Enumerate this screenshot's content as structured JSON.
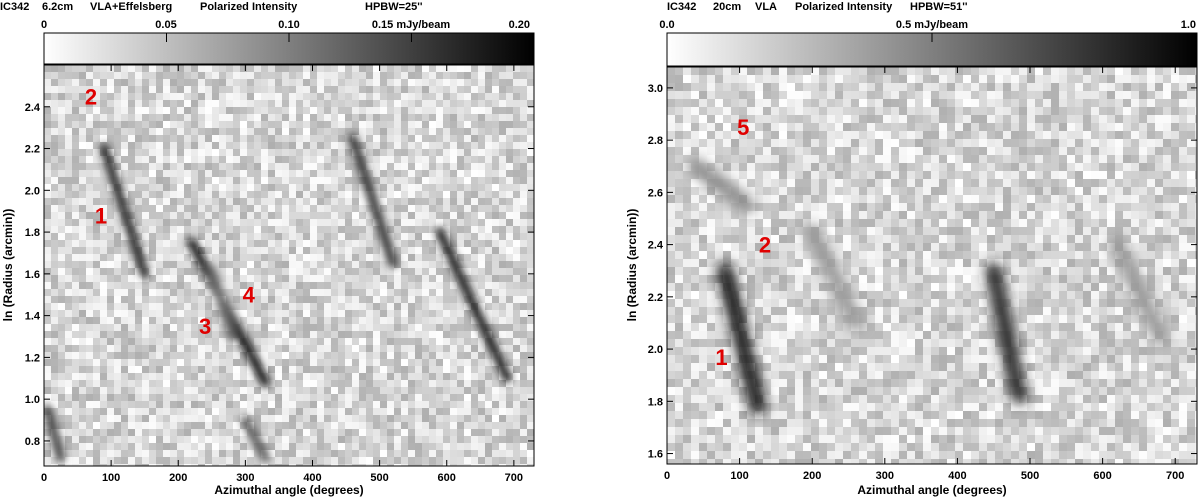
{
  "chart_data": [
    {
      "type": "heatmap",
      "header": {
        "object": "IC342",
        "wavelength": "6.2cm",
        "instrument": "VLA+Effelsberg",
        "quantity": "Polarized Intensity",
        "beam": "HPBW=25''"
      },
      "colorbar": {
        "min": 0,
        "max": 0.2,
        "ticks": [
          "0",
          "0.05",
          "0.10",
          "0.15 mJy/beam",
          "0.20"
        ],
        "tick_values": [
          0,
          0.05,
          0.1,
          0.15,
          0.2
        ],
        "colormap": "white-to-black"
      },
      "xlabel": "Azimuthal angle (degrees)",
      "ylabel": "ln (Radius (arcmin))",
      "xlim": [
        0,
        730
      ],
      "ylim": [
        0.68,
        2.6
      ],
      "xticks": [
        "0",
        "100",
        "200",
        "300",
        "400",
        "500",
        "600",
        "700"
      ],
      "xtick_values": [
        0,
        100,
        200,
        300,
        400,
        500,
        600,
        700
      ],
      "yticks": [
        "0.8",
        "1.0",
        "1.2",
        "1.4",
        "1.6",
        "1.8",
        "2.0",
        "2.2",
        "2.4"
      ],
      "ytick_values": [
        0.8,
        1.0,
        1.2,
        1.4,
        1.6,
        1.8,
        2.0,
        2.2,
        2.4
      ],
      "ridges": [
        {
          "points": [
            [
              90,
              2.2
            ],
            [
              150,
              1.6
            ]
          ],
          "value": 0.17
        },
        {
          "points": [
            [
              220,
              1.75
            ],
            [
              330,
              1.08
            ]
          ],
          "value": 0.19
        },
        {
          "points": [
            [
              460,
              2.25
            ],
            [
              520,
              1.65
            ]
          ],
          "value": 0.16
        },
        {
          "points": [
            [
              590,
              1.8
            ],
            [
              690,
              1.1
            ]
          ],
          "value": 0.18
        },
        {
          "points": [
            [
              250,
              1.62
            ],
            [
              280,
              1.3
            ]
          ],
          "value": 0.12
        },
        {
          "points": [
            [
              5,
              0.95
            ],
            [
              25,
              0.72
            ]
          ],
          "value": 0.15
        },
        {
          "points": [
            [
              300,
              0.9
            ],
            [
              330,
              0.72
            ]
          ],
          "value": 0.13
        }
      ],
      "annotations": [
        {
          "text": "2",
          "x": 70,
          "y": 2.45
        },
        {
          "text": "1",
          "x": 85,
          "y": 1.88
        },
        {
          "text": "3",
          "x": 240,
          "y": 1.35
        },
        {
          "text": "4",
          "x": 305,
          "y": 1.5
        }
      ],
      "annotation_color": "#e00000"
    },
    {
      "type": "heatmap",
      "header": {
        "object": "IC342",
        "wavelength": "20cm",
        "instrument": "VLA",
        "quantity": "Polarized Intensity",
        "beam": "HPBW=51''"
      },
      "colorbar": {
        "min": 0,
        "max": 1.0,
        "ticks": [
          "0.0",
          "0.5 mJy/beam",
          "1.0"
        ],
        "tick_values": [
          0,
          0.5,
          1.0
        ],
        "colormap": "white-to-black"
      },
      "xlabel": "Azimuthal angle (degrees)",
      "ylabel": "ln (Radius (arcmin))",
      "xlim": [
        0,
        730
      ],
      "ylim": [
        1.56,
        3.08
      ],
      "xticks": [
        "0",
        "100",
        "200",
        "300",
        "400",
        "500",
        "600",
        "700"
      ],
      "xtick_values": [
        0,
        100,
        200,
        300,
        400,
        500,
        600,
        700
      ],
      "yticks": [
        "1.6",
        "1.8",
        "2.0",
        "2.2",
        "2.4",
        "2.6",
        "2.8",
        "3.0"
      ],
      "ytick_values": [
        1.6,
        1.8,
        2.0,
        2.2,
        2.4,
        2.6,
        2.8,
        3.0
      ],
      "ridges": [
        {
          "points": [
            [
              80,
              2.3
            ],
            [
              125,
              1.78
            ]
          ],
          "value": 0.9
        },
        {
          "points": [
            [
              450,
              2.3
            ],
            [
              485,
              1.82
            ]
          ],
          "value": 0.85
        },
        {
          "points": [
            [
              40,
              2.7
            ],
            [
              110,
              2.55
            ]
          ],
          "value": 0.45
        },
        {
          "points": [
            [
              200,
              2.45
            ],
            [
              260,
              2.1
            ]
          ],
          "value": 0.4
        },
        {
          "points": [
            [
              620,
              2.4
            ],
            [
              680,
              2.05
            ]
          ],
          "value": 0.4
        }
      ],
      "annotations": [
        {
          "text": "5",
          "x": 105,
          "y": 2.85
        },
        {
          "text": "2",
          "x": 135,
          "y": 2.4
        },
        {
          "text": "1",
          "x": 75,
          "y": 1.97
        }
      ],
      "annotation_color": "#e00000"
    }
  ]
}
